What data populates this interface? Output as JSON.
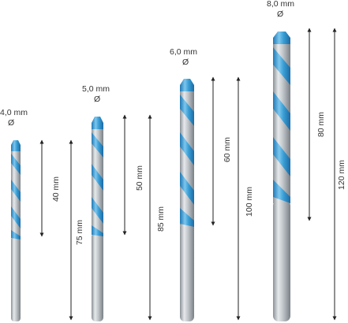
{
  "palette": {
    "tip_blue": "#3a9fd6",
    "tip_blue_dark": "#1f78b4",
    "tip_blue_light": "#8fd0f2",
    "steel_light": "#e3e6e8",
    "steel_mid": "#b4b9bd",
    "steel_dark": "#7f868b",
    "dimension_line": "#222222"
  },
  "bits": [
    {
      "diameter_label": "4,0 mm",
      "diameter_symbol": "Ø",
      "working_length_label": "40 mm",
      "total_length_label": "75 mm"
    },
    {
      "diameter_label": "5,0 mm",
      "diameter_symbol": "Ø",
      "working_length_label": "50 mm",
      "total_length_label": "85 mm"
    },
    {
      "diameter_label": "6,0 mm",
      "diameter_symbol": "Ø",
      "working_length_label": "60 mm",
      "total_length_label": "100 mm"
    },
    {
      "diameter_label": "8,0 mm",
      "diameter_symbol": "Ø",
      "working_length_label": "80 mm",
      "total_length_label": "120 mm"
    }
  ]
}
